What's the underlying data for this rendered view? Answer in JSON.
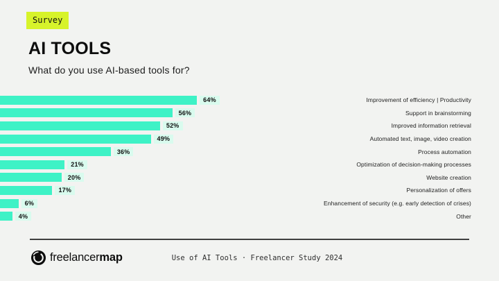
{
  "page": {
    "badge": "Survey",
    "title": "AI TOOLS",
    "subtitle": "What do you use AI-based tools for?"
  },
  "chart_data": {
    "type": "bar",
    "orientation": "horizontal",
    "title": "What do you use AI-based tools for?",
    "categories": [
      "Improvement of efficiency | Productivity",
      "Support in brainstorming",
      "Improved information retrieval",
      "Automated text, image, video creation",
      "Process automation",
      "Optimization of decision-making processes",
      "Website creation",
      "Personalization of offers",
      "Enhancement of security (e.g. early detection of crises)",
      "Other"
    ],
    "values": [
      64,
      56,
      52,
      49,
      36,
      21,
      20,
      17,
      6,
      4
    ],
    "value_suffix": "%",
    "xlim": [
      0,
      100
    ],
    "grid": false,
    "legend": false,
    "value_labels_position": "end-of-bar",
    "category_labels_position": "right",
    "bar_color": "#3ef2c6",
    "value_chip_color": "#d9fbee"
  },
  "footer": {
    "brand": {
      "name_regular": "freelancer",
      "name_bold": "map"
    },
    "caption": "Use of AI Tools · Freelancer Study 2024"
  },
  "colors": {
    "background": "#f2f3f1",
    "badge_background": "#d7f32a",
    "bar": "#3ef2c6",
    "value_chip": "#d9fbee",
    "text": "#111111"
  }
}
